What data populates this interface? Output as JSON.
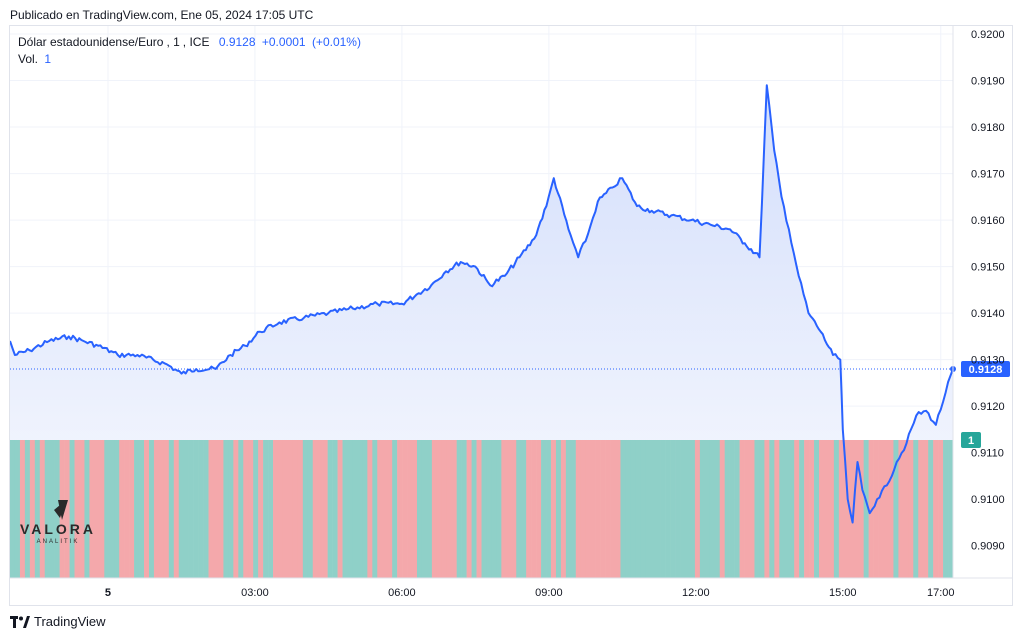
{
  "header": {
    "published": "Publicado en TradingView.com, Ene 05, 2024 17:05 UTC"
  },
  "legend": {
    "symbol": "Dólar estadounidense/Euro",
    "interval": "1",
    "exchange": "ICE",
    "last": "0.9128",
    "change": "+0.0001",
    "change_pct": "(+0.01%)",
    "vol_label": "Vol.",
    "vol_value": "1"
  },
  "watermark": {
    "name": "VALORA",
    "sub": "ANALITIK"
  },
  "footer": {
    "brand": "TradingView"
  },
  "colors": {
    "line": "#2962ff",
    "area_top": "#d3defb",
    "area_bottom": "#f6f8fe",
    "vol_up": "#8fd0c8",
    "vol_down": "#f4a8ab",
    "badge_price": "#2962ff",
    "badge_vol": "#26a69a",
    "grid": "#f0f3fa",
    "axis_text": "#131722"
  },
  "chart_data": {
    "type": "area",
    "title": "Dólar estadounidense/Euro, 1, ICE",
    "x_ticks": [
      "5",
      "03:00",
      "06:00",
      "09:00",
      "12:00",
      "15:00",
      "17:00"
    ],
    "x_tick_hours": [
      0,
      3,
      6,
      9,
      12,
      15,
      17
    ],
    "x_range_hours": [
      -2.0,
      17.25
    ],
    "y_ticks": [
      "0.9090",
      "0.9100",
      "0.9110",
      "0.9120",
      "0.9130",
      "0.9140",
      "0.9150",
      "0.9160",
      "0.9170",
      "0.9180",
      "0.9190",
      "0.9200"
    ],
    "ylim": [
      0.9085,
      0.92
    ],
    "last_price": 0.9128,
    "last_price_label": "0.9128",
    "volume_label": "1",
    "series": [
      {
        "name": "Dólar estadounidense/Euro",
        "x": [
          -2.0,
          -1.9,
          -1.6,
          -1.2,
          -0.8,
          -0.5,
          -0.2,
          0.2,
          0.6,
          1.2,
          1.5,
          1.8,
          2.2,
          2.5,
          2.8,
          3.1,
          3.5,
          4.0,
          4.5,
          5.0,
          5.5,
          6.0,
          6.3,
          6.6,
          6.9,
          7.2,
          7.5,
          7.8,
          8.1,
          8.4,
          8.7,
          8.95,
          9.1,
          9.4,
          9.6,
          9.8,
          10.0,
          10.3,
          10.5,
          10.8,
          11.1,
          11.5,
          11.9,
          12.3,
          12.7,
          13.0,
          13.3,
          13.45,
          13.6,
          13.75,
          13.9,
          14.1,
          14.3,
          14.55,
          14.8,
          14.95,
          15.0,
          15.1,
          15.2,
          15.3,
          15.4,
          15.55,
          15.7,
          15.9,
          16.1,
          16.3,
          16.5,
          16.7,
          16.9,
          17.1,
          17.25
        ],
        "y": [
          0.9134,
          0.9131,
          0.9132,
          0.9134,
          0.9135,
          0.9134,
          0.9133,
          0.9131,
          0.9131,
          0.9129,
          0.9127,
          0.9128,
          0.9128,
          0.9131,
          0.9133,
          0.9136,
          0.9138,
          0.9139,
          0.914,
          0.9141,
          0.9142,
          0.9142,
          0.9144,
          0.9146,
          0.9149,
          0.9151,
          0.915,
          0.9146,
          0.9148,
          0.9152,
          0.9156,
          0.9163,
          0.9169,
          0.9158,
          0.9152,
          0.9157,
          0.9164,
          0.9167,
          0.9169,
          0.9163,
          0.9162,
          0.9161,
          0.916,
          0.9159,
          0.9158,
          0.9155,
          0.9152,
          0.9189,
          0.9175,
          0.9165,
          0.9158,
          0.9148,
          0.914,
          0.9136,
          0.9131,
          0.913,
          0.9115,
          0.91,
          0.9095,
          0.9108,
          0.9102,
          0.9097,
          0.91,
          0.9103,
          0.9108,
          0.9112,
          0.9118,
          0.9119,
          0.9116,
          0.9123,
          0.9128
        ]
      }
    ],
    "volume": {
      "start_hour": -2.0,
      "end_hour": 17.25,
      "bar_count": 190,
      "value_max": 1
    }
  }
}
